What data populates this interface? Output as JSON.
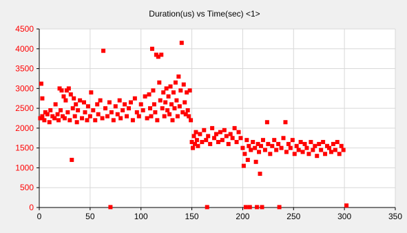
{
  "chart_data": {
    "type": "scatter",
    "title": "Duration(us) vs Time(sec) <1>",
    "xlabel": "",
    "ylabel": "",
    "xlim": [
      0,
      350
    ],
    "ylim": [
      0,
      4500
    ],
    "xticks": [
      0,
      50,
      100,
      150,
      200,
      250,
      300,
      350
    ],
    "yticks": [
      0,
      500,
      1000,
      1500,
      2000,
      2500,
      3000,
      3500,
      4000,
      4500
    ],
    "grid": true,
    "legend": "none",
    "colors": {
      "marker": "#ff0000",
      "ytick_labels": "#ff0000",
      "grid": "#d8d8d8",
      "axis": "#000000",
      "plot_background": "#ffffff"
    },
    "series": [
      {
        "values": [
          {
            "x": 1,
            "y": 2250
          },
          {
            "x": 2,
            "y": 3120
          },
          {
            "x": 3,
            "y": 2750
          },
          {
            "x": 3,
            "y": 2300
          },
          {
            "x": 5,
            "y": 2200
          },
          {
            "x": 6,
            "y": 2400
          },
          {
            "x": 8,
            "y": 2350
          },
          {
            "x": 10,
            "y": 2150
          },
          {
            "x": 11,
            "y": 2450
          },
          {
            "x": 13,
            "y": 2300
          },
          {
            "x": 15,
            "y": 2250
          },
          {
            "x": 16,
            "y": 2600
          },
          {
            "x": 18,
            "y": 2350
          },
          {
            "x": 19,
            "y": 2200
          },
          {
            "x": 20,
            "y": 3000
          },
          {
            "x": 21,
            "y": 2450
          },
          {
            "x": 22,
            "y": 2950
          },
          {
            "x": 23,
            "y": 2300
          },
          {
            "x": 24,
            "y": 2800
          },
          {
            "x": 25,
            "y": 2250
          },
          {
            "x": 26,
            "y": 2700
          },
          {
            "x": 27,
            "y": 2950
          },
          {
            "x": 28,
            "y": 2400
          },
          {
            "x": 29,
            "y": 3000
          },
          {
            "x": 30,
            "y": 2200
          },
          {
            "x": 31,
            "y": 2850
          },
          {
            "x": 32,
            "y": 1200
          },
          {
            "x": 33,
            "y": 2500
          },
          {
            "x": 34,
            "y": 2750
          },
          {
            "x": 35,
            "y": 2300
          },
          {
            "x": 36,
            "y": 2600
          },
          {
            "x": 37,
            "y": 2150
          },
          {
            "x": 38,
            "y": 2450
          },
          {
            "x": 40,
            "y": 2700
          },
          {
            "x": 42,
            "y": 2250
          },
          {
            "x": 44,
            "y": 2650
          },
          {
            "x": 45,
            "y": 2400
          },
          {
            "x": 47,
            "y": 2200
          },
          {
            "x": 48,
            "y": 2550
          },
          {
            "x": 50,
            "y": 2300
          },
          {
            "x": 51,
            "y": 2900
          },
          {
            "x": 53,
            "y": 2450
          },
          {
            "x": 55,
            "y": 2200
          },
          {
            "x": 57,
            "y": 2600
          },
          {
            "x": 58,
            "y": 2350
          },
          {
            "x": 60,
            "y": 2700
          },
          {
            "x": 62,
            "y": 2250
          },
          {
            "x": 63,
            "y": 3950
          },
          {
            "x": 65,
            "y": 2500
          },
          {
            "x": 67,
            "y": 2300
          },
          {
            "x": 69,
            "y": 2650
          },
          {
            "x": 70,
            "y": 10
          },
          {
            "x": 71,
            "y": 2400
          },
          {
            "x": 73,
            "y": 2200
          },
          {
            "x": 75,
            "y": 2550
          },
          {
            "x": 77,
            "y": 2350
          },
          {
            "x": 79,
            "y": 2700
          },
          {
            "x": 80,
            "y": 2250
          },
          {
            "x": 82,
            "y": 2450
          },
          {
            "x": 84,
            "y": 2600
          },
          {
            "x": 86,
            "y": 2300
          },
          {
            "x": 88,
            "y": 2500
          },
          {
            "x": 90,
            "y": 2650
          },
          {
            "x": 92,
            "y": 2200
          },
          {
            "x": 94,
            "y": 2750
          },
          {
            "x": 96,
            "y": 2400
          },
          {
            "x": 98,
            "y": 2300
          },
          {
            "x": 100,
            "y": 2600
          },
          {
            "x": 102,
            "y": 2450
          },
          {
            "x": 104,
            "y": 2800
          },
          {
            "x": 106,
            "y": 2250
          },
          {
            "x": 108,
            "y": 2850
          },
          {
            "x": 109,
            "y": 2500
          },
          {
            "x": 110,
            "y": 2300
          },
          {
            "x": 111,
            "y": 4000
          },
          {
            "x": 112,
            "y": 2950
          },
          {
            "x": 113,
            "y": 2600
          },
          {
            "x": 114,
            "y": 2400
          },
          {
            "x": 115,
            "y": 3850
          },
          {
            "x": 116,
            "y": 2200
          },
          {
            "x": 117,
            "y": 3800
          },
          {
            "x": 118,
            "y": 3150
          },
          {
            "x": 119,
            "y": 2700
          },
          {
            "x": 120,
            "y": 3850
          },
          {
            "x": 121,
            "y": 2500
          },
          {
            "x": 122,
            "y": 2900
          },
          {
            "x": 123,
            "y": 2300
          },
          {
            "x": 124,
            "y": 2650
          },
          {
            "x": 125,
            "y": 3000
          },
          {
            "x": 126,
            "y": 2450
          },
          {
            "x": 127,
            "y": 2800
          },
          {
            "x": 128,
            "y": 2350
          },
          {
            "x": 129,
            "y": 3050
          },
          {
            "x": 130,
            "y": 2600
          },
          {
            "x": 131,
            "y": 2200
          },
          {
            "x": 132,
            "y": 2900
          },
          {
            "x": 133,
            "y": 2500
          },
          {
            "x": 134,
            "y": 3150
          },
          {
            "x": 135,
            "y": 2700
          },
          {
            "x": 136,
            "y": 2300
          },
          {
            "x": 137,
            "y": 3300
          },
          {
            "x": 138,
            "y": 2550
          },
          {
            "x": 139,
            "y": 2950
          },
          {
            "x": 140,
            "y": 4150
          },
          {
            "x": 141,
            "y": 2400
          },
          {
            "x": 142,
            "y": 3100
          },
          {
            "x": 143,
            "y": 2650
          },
          {
            "x": 144,
            "y": 2350
          },
          {
            "x": 145,
            "y": 2900
          },
          {
            "x": 146,
            "y": 2450
          },
          {
            "x": 147,
            "y": 2300
          },
          {
            "x": 148,
            "y": 2950
          },
          {
            "x": 149,
            "y": 2200
          },
          {
            "x": 150,
            "y": 1650
          },
          {
            "x": 151,
            "y": 1500
          },
          {
            "x": 152,
            "y": 1800
          },
          {
            "x": 153,
            "y": 1600
          },
          {
            "x": 154,
            "y": 1900
          },
          {
            "x": 155,
            "y": 1700
          },
          {
            "x": 156,
            "y": 1550
          },
          {
            "x": 158,
            "y": 1850
          },
          {
            "x": 160,
            "y": 1650
          },
          {
            "x": 162,
            "y": 1950
          },
          {
            "x": 164,
            "y": 1700
          },
          {
            "x": 165,
            "y": 10
          },
          {
            "x": 166,
            "y": 1800
          },
          {
            "x": 168,
            "y": 1600
          },
          {
            "x": 170,
            "y": 2000
          },
          {
            "x": 172,
            "y": 1750
          },
          {
            "x": 174,
            "y": 1850
          },
          {
            "x": 176,
            "y": 1650
          },
          {
            "x": 178,
            "y": 1900
          },
          {
            "x": 180,
            "y": 1700
          },
          {
            "x": 182,
            "y": 1950
          },
          {
            "x": 184,
            "y": 1800
          },
          {
            "x": 186,
            "y": 1600
          },
          {
            "x": 188,
            "y": 1850
          },
          {
            "x": 190,
            "y": 1750
          },
          {
            "x": 192,
            "y": 2000
          },
          {
            "x": 194,
            "y": 1650
          },
          {
            "x": 196,
            "y": 1900
          },
          {
            "x": 198,
            "y": 1750
          },
          {
            "x": 200,
            "y": 1500
          },
          {
            "x": 201,
            "y": 1050
          },
          {
            "x": 202,
            "y": 1350
          },
          {
            "x": 203,
            "y": 10
          },
          {
            "x": 204,
            "y": 1700
          },
          {
            "x": 205,
            "y": 1200
          },
          {
            "x": 206,
            "y": 1550
          },
          {
            "x": 207,
            "y": 10
          },
          {
            "x": 208,
            "y": 1450
          },
          {
            "x": 210,
            "y": 1650
          },
          {
            "x": 212,
            "y": 1500
          },
          {
            "x": 213,
            "y": 1150
          },
          {
            "x": 214,
            "y": 10
          },
          {
            "x": 215,
            "y": 1600
          },
          {
            "x": 216,
            "y": 1400
          },
          {
            "x": 217,
            "y": 850
          },
          {
            "x": 218,
            "y": 1550
          },
          {
            "x": 219,
            "y": 10
          },
          {
            "x": 220,
            "y": 1700
          },
          {
            "x": 222,
            "y": 1450
          },
          {
            "x": 224,
            "y": 2150
          },
          {
            "x": 225,
            "y": 1600
          },
          {
            "x": 227,
            "y": 1350
          },
          {
            "x": 229,
            "y": 1550
          },
          {
            "x": 231,
            "y": 1700
          },
          {
            "x": 233,
            "y": 1450
          },
          {
            "x": 235,
            "y": 1600
          },
          {
            "x": 236,
            "y": 10
          },
          {
            "x": 238,
            "y": 1500
          },
          {
            "x": 240,
            "y": 1750
          },
          {
            "x": 242,
            "y": 2150
          },
          {
            "x": 243,
            "y": 1400
          },
          {
            "x": 245,
            "y": 1600
          },
          {
            "x": 247,
            "y": 1500
          },
          {
            "x": 249,
            "y": 1700
          },
          {
            "x": 251,
            "y": 1350
          },
          {
            "x": 253,
            "y": 1550
          },
          {
            "x": 255,
            "y": 1450
          },
          {
            "x": 257,
            "y": 1650
          },
          {
            "x": 259,
            "y": 1400
          },
          {
            "x": 261,
            "y": 1600
          },
          {
            "x": 263,
            "y": 1500
          },
          {
            "x": 265,
            "y": 1350
          },
          {
            "x": 267,
            "y": 1650
          },
          {
            "x": 269,
            "y": 1450
          },
          {
            "x": 271,
            "y": 1550
          },
          {
            "x": 273,
            "y": 1300
          },
          {
            "x": 275,
            "y": 1600
          },
          {
            "x": 277,
            "y": 1450
          },
          {
            "x": 279,
            "y": 1650
          },
          {
            "x": 281,
            "y": 1350
          },
          {
            "x": 283,
            "y": 1550
          },
          {
            "x": 285,
            "y": 1500
          },
          {
            "x": 287,
            "y": 1400
          },
          {
            "x": 289,
            "y": 1600
          },
          {
            "x": 291,
            "y": 1450
          },
          {
            "x": 293,
            "y": 1650
          },
          {
            "x": 295,
            "y": 1350
          },
          {
            "x": 297,
            "y": 1550
          },
          {
            "x": 299,
            "y": 1450
          },
          {
            "x": 302,
            "y": 50
          }
        ]
      }
    ]
  }
}
